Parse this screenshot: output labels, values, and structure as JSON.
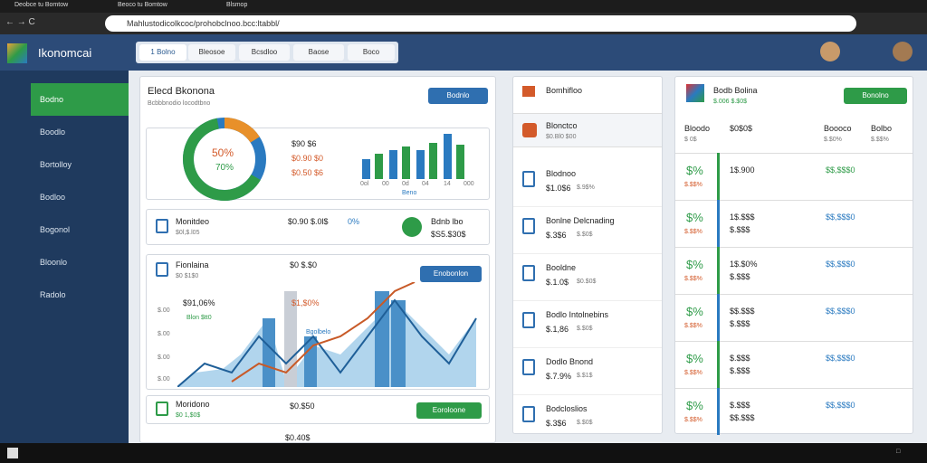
{
  "browser": {
    "tabs": [
      "Deobce tu Bomtow",
      "Beoco tu Bomtow",
      "Blsmop"
    ],
    "url": "Mahlustodicolkcoc/prohobclnoo.bcc:ltabbl/"
  },
  "app": {
    "name": "Ikonomcai",
    "toolbar": [
      "1 Bolno",
      "Bleosoe",
      "Bcsdloo",
      "Baose",
      "Boco"
    ]
  },
  "sidebar": {
    "items": [
      "Bodno",
      "Boodlo",
      "Bortolloy",
      "Bodloo",
      "Bogonol",
      "Bloonlo",
      "Radolo"
    ]
  },
  "overview": {
    "title": "Elecd Bkonona",
    "subtitle": "Bcbbbnodio locodtbno",
    "button": "Bodnlo",
    "donut_labels": [
      "50%",
      "70%"
    ],
    "stats": [
      "$90 $6",
      "$0.90 $0",
      "$0.50 $6"
    ],
    "bar_labels": [
      "0ol",
      "00",
      "0d",
      "04",
      "14",
      "000"
    ],
    "bar_caption": "Beno"
  },
  "summary": {
    "title": "Monitdeo",
    "value": "$0l,$.l05",
    "stat": "$0.90 $.0l$",
    "percent": "0%",
    "label": "Bdnb lbo",
    "amount": "$S5.$30$"
  },
  "trend": {
    "title": "Fionlaina",
    "subtitle": "$0 $1$0",
    "stat": "$0 $.$0",
    "button": "Enobonlon",
    "annotations": [
      "$91,06%",
      "Blon $tt0",
      "$1,$0%",
      "Bgolbelo"
    ],
    "y_labels": [
      "$.00",
      "$.00",
      "$.00",
      "$.00"
    ]
  },
  "footer_row": {
    "title": "Moridono",
    "subtitle": "$0 1,$0$",
    "stat": "$0.$50",
    "button": "Eoroloone",
    "extra": "$0.40$"
  },
  "list": {
    "header": "Bomhifloo",
    "selected": {
      "title": "Blonctco",
      "subtitle": "$0.Bl0 $00"
    },
    "items": [
      {
        "title": "Blodnoo",
        "a": "$1.0$6",
        "b": "$.9$%"
      },
      {
        "title": "Bonlne Delcnading",
        "a": "$.3$6",
        "b": "$.$0$"
      },
      {
        "title": "Booldne",
        "a": "$.1.0$",
        "b": "$0.$0$"
      },
      {
        "title": "Bodlo Intolnebins",
        "a": "$.1,86",
        "b": "$.$0$"
      },
      {
        "title": "Dodlo Bnond",
        "a": "$.7.9%",
        "b": "$.$1$"
      },
      {
        "title": "Bodcloslios",
        "a": "$.3$6",
        "b": "$.$0$"
      }
    ]
  },
  "table": {
    "title": "Bodb Bolina",
    "subtitle": "$.006 $.$0$",
    "button": "Bonolno",
    "headers": [
      [
        "Bloodo",
        "$ 0$"
      ],
      [
        "$0$0$",
        ""
      ],
      [
        "Boooco",
        "$.$0%"
      ],
      [
        "Bolbo",
        "$.$$%"
      ]
    ],
    "rows": [
      [
        "$%",
        "$.$$%",
        "1$.900",
        "",
        "$$,$$$0"
      ],
      [
        "$%",
        "$.$$%",
        "1$.$$$",
        "$.$$$",
        "$$,$$$0"
      ],
      [
        "$%",
        "$.$$%",
        "1$.$0%",
        "$.$$$",
        "$$,$$$0"
      ],
      [
        "$%",
        "$.$$%",
        "$$.$$$",
        "$.$$$",
        "$$,$$$0"
      ],
      [
        "$%",
        "$.$$%",
        "$.$$$",
        "$.$$$",
        "$$,$$$0"
      ],
      [
        "$%",
        "$.$$%",
        "$.$$$",
        "$$.$$$",
        "$$,$$$0"
      ]
    ]
  }
}
